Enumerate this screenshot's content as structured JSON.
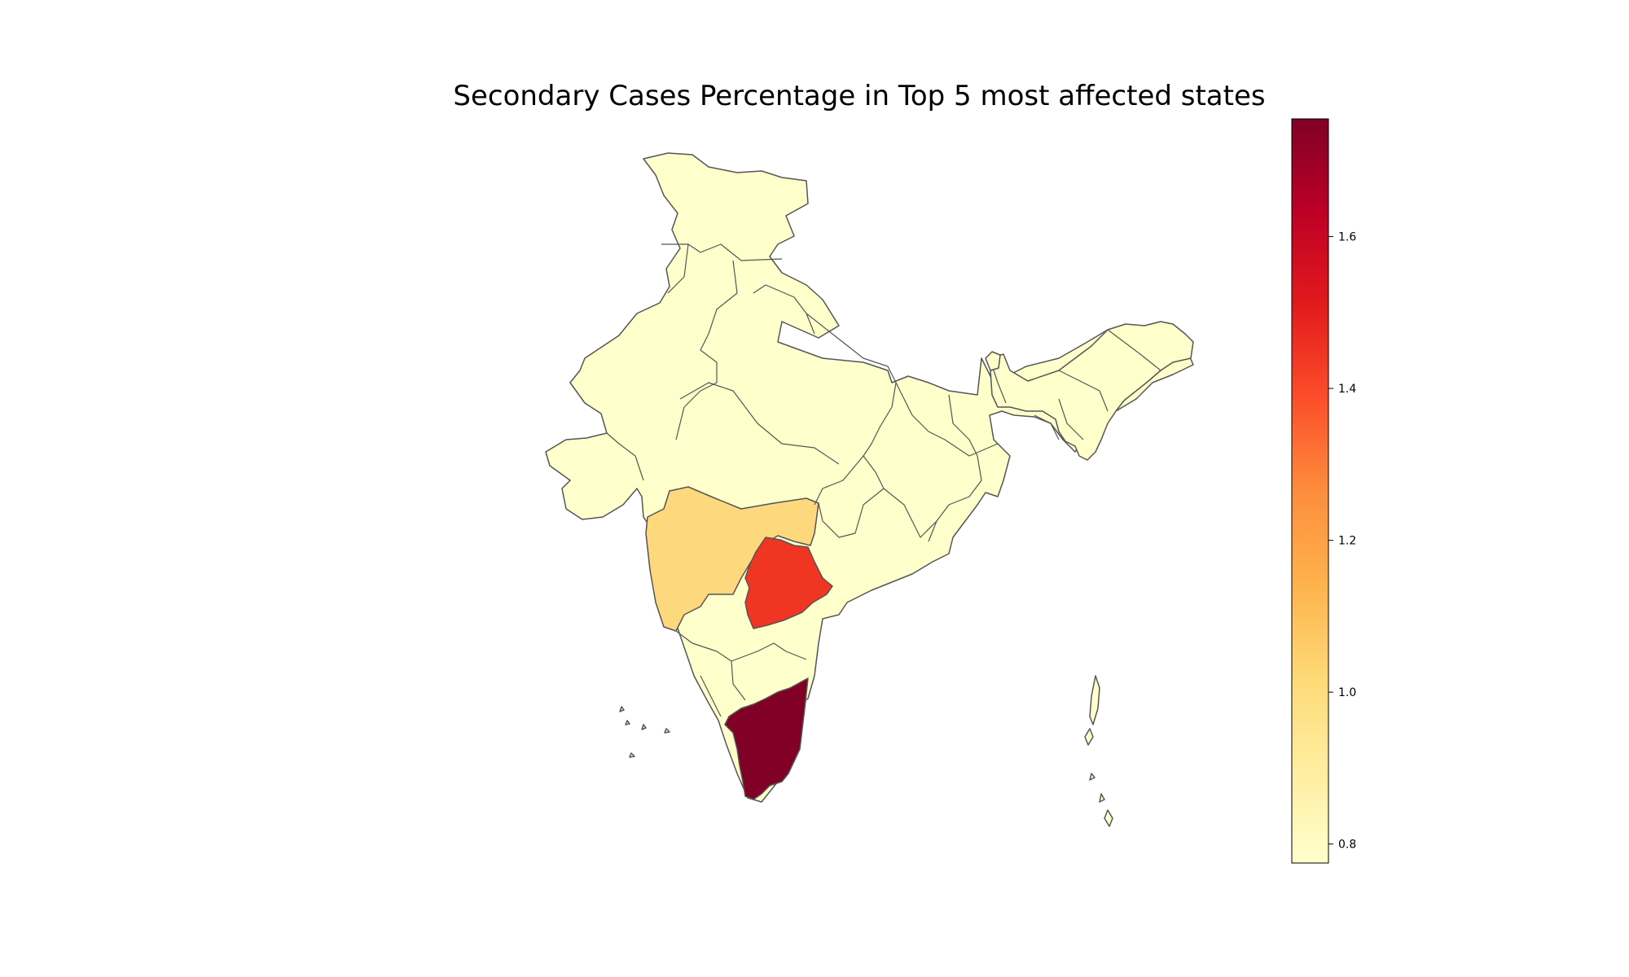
{
  "title": "Secondary Cases Percentage in Top 5 most affected states",
  "colorbar": {
    "min": 0.775,
    "max": 1.755,
    "ticks": [
      {
        "value": 0.8,
        "label": "0.8"
      },
      {
        "value": 1.0,
        "label": "1.0"
      },
      {
        "value": 1.2,
        "label": "1.2"
      },
      {
        "value": 1.4,
        "label": "1.4"
      },
      {
        "value": 1.6,
        "label": "1.6"
      }
    ],
    "colormap": "YlOrRd",
    "colormap_stops": [
      "#ffffcc",
      "#ffeda0",
      "#fed976",
      "#feb24c",
      "#fd8d3c",
      "#fc4e2a",
      "#e31a1c",
      "#bd0026",
      "#800026"
    ]
  },
  "colors": {
    "state_fill_default": "#ffffcc",
    "state_border": "#555555"
  },
  "chart_data": {
    "type": "choropleth",
    "region": "India (states)",
    "value_range": [
      0.775,
      1.755
    ],
    "highlighted_regions": [
      {
        "region": "Tamil Nadu",
        "value": 1.75,
        "color": "#800026"
      },
      {
        "region": "Telangana",
        "value": 1.45,
        "color": "#f03523"
      },
      {
        "region": "Maharashtra",
        "value": 0.98,
        "color": "#fed87c"
      }
    ],
    "other_regions_value": 0.78
  }
}
